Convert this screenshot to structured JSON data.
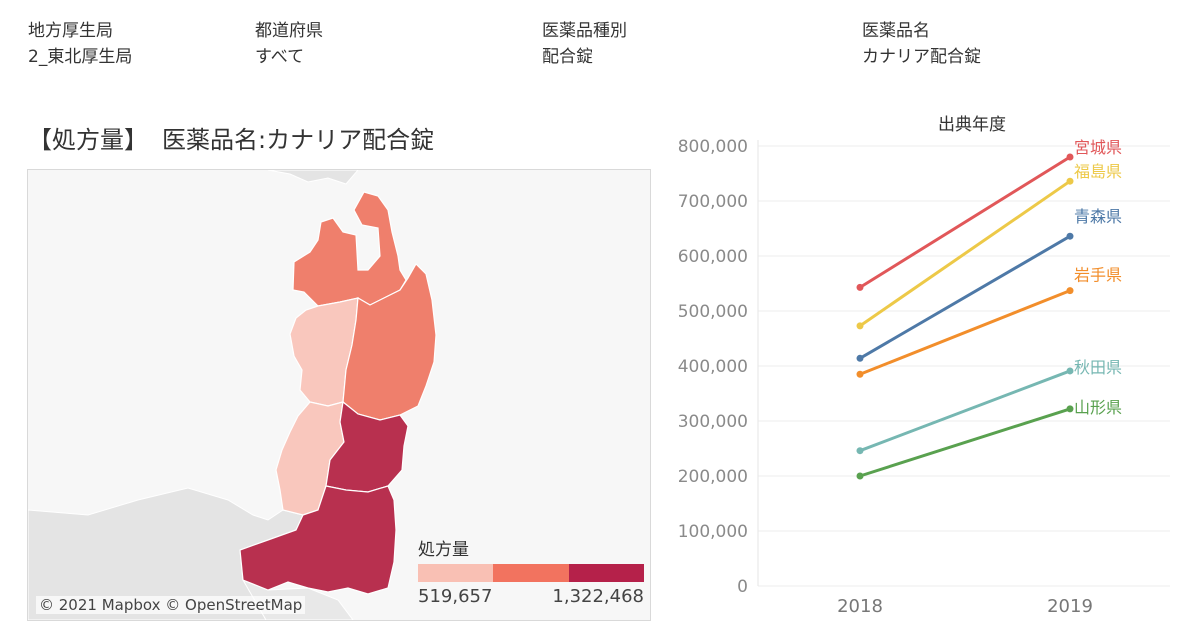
{
  "filters": [
    {
      "label": "地方厚生局",
      "value": "2_東北厚生局"
    },
    {
      "label": "都道府県",
      "value": "すべて"
    },
    {
      "label": "医薬品種別",
      "value": "配合錠"
    },
    {
      "label": "医薬品名",
      "value": "カナリア配合錠"
    }
  ],
  "map": {
    "title_prefix": "【処方量】",
    "title_main": "医薬品名:カナリア配合錠",
    "attribution": "© 2021 Mapbox © OpenStreetMap",
    "regions": [
      {
        "name": "青森県",
        "color": "#ef7f6c"
      },
      {
        "name": "岩手県",
        "color": "#ef7f6c"
      },
      {
        "name": "秋田県",
        "color": "#f9c7bd"
      },
      {
        "name": "宮城県",
        "color": "#b8304f"
      },
      {
        "name": "山形県",
        "color": "#f9c7bd"
      },
      {
        "name": "福島県",
        "color": "#b8304f"
      }
    ],
    "legend": {
      "title": "処方量",
      "min": "519,657",
      "max": "1,322,468",
      "colors": [
        "#f9c0b4",
        "#f2735f",
        "#b5214a"
      ]
    }
  },
  "chart_data": {
    "type": "line",
    "title": "出典年度",
    "x": [
      "2018",
      "2019"
    ],
    "ylim": [
      0,
      800000
    ],
    "yticks": [
      "0",
      "100,000",
      "200,000",
      "300,000",
      "400,000",
      "500,000",
      "600,000",
      "700,000",
      "800,000"
    ],
    "grid": true,
    "series": [
      {
        "name": "宮城県",
        "color": "#e15759",
        "values": [
          543000,
          780000
        ]
      },
      {
        "name": "福島県",
        "color": "#edc948",
        "values": [
          473000,
          736000
        ]
      },
      {
        "name": "青森県",
        "color": "#4e79a7",
        "values": [
          414000,
          636000
        ]
      },
      {
        "name": "岩手県",
        "color": "#f28e2b",
        "values": [
          385000,
          537000
        ]
      },
      {
        "name": "秋田県",
        "color": "#76b7b2",
        "values": [
          246000,
          391000
        ]
      },
      {
        "name": "山形県",
        "color": "#59a14f",
        "values": [
          200000,
          322000
        ]
      }
    ]
  }
}
